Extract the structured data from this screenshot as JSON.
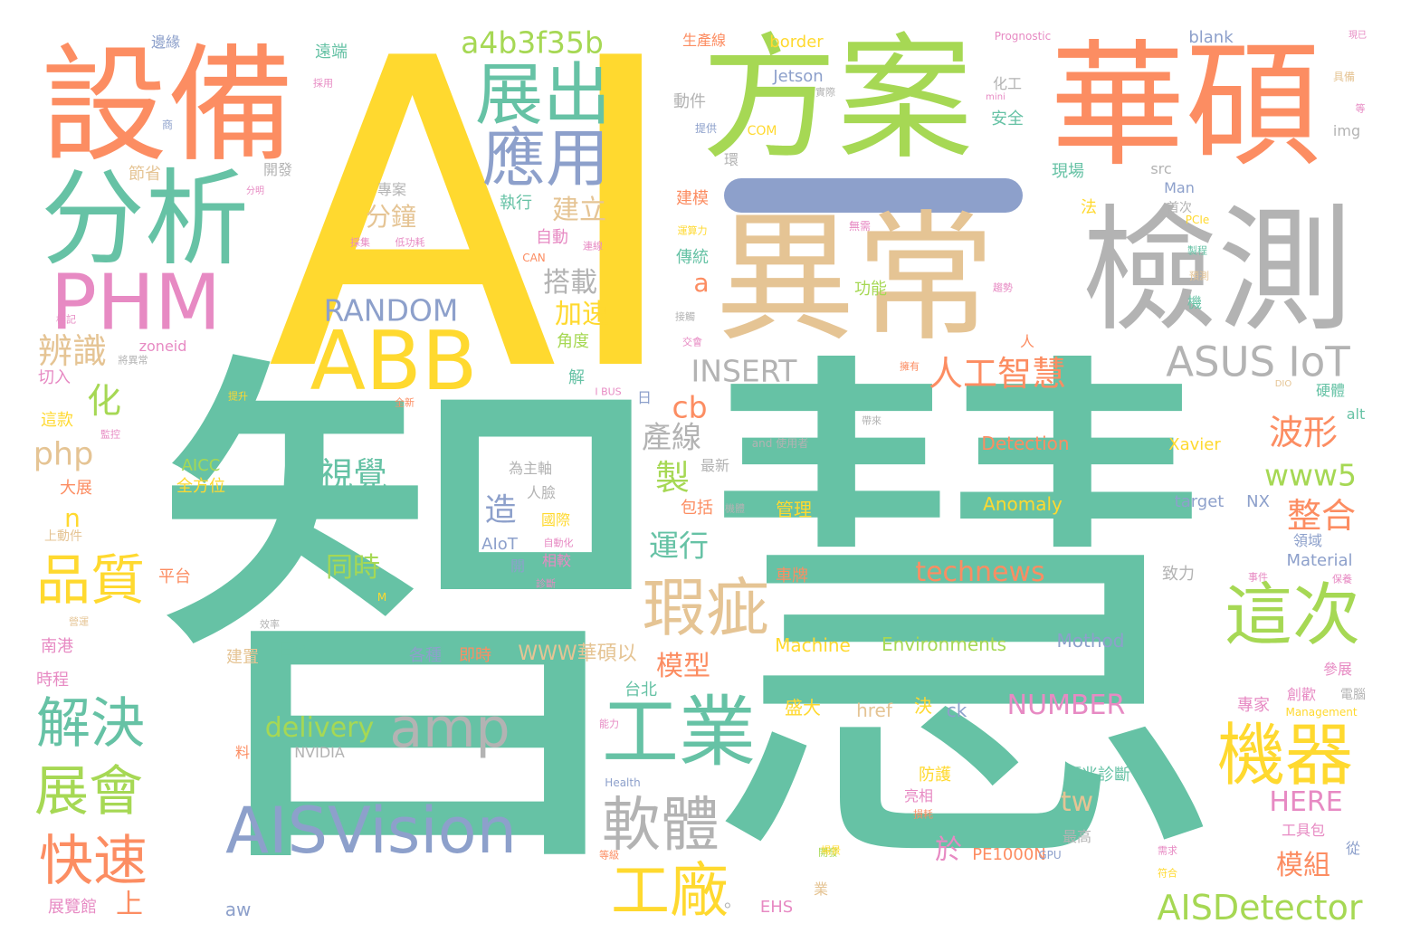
{
  "words": [
    {
      "text": "智慧",
      "color": "#66c2a5"
    },
    {
      "text": "AI",
      "color": "#ffd92f"
    },
    {
      "text": "異常",
      "color": "#e5c494"
    },
    {
      "text": "檢測",
      "color": "#b3b3b3"
    },
    {
      "text": "華碩",
      "color": "#fc8d62"
    },
    {
      "text": "方案",
      "color": "#a6d854"
    },
    {
      "text": "設備",
      "color": "#fc8d62"
    },
    {
      "text": "分析",
      "color": "#66c2a5"
    },
    {
      "text": "ABB",
      "color": "#ffd92f"
    },
    {
      "text": "PHM",
      "color": "#e78ac3"
    },
    {
      "text": "展出",
      "color": "#66c2a5"
    },
    {
      "text": "應用",
      "color": "#8da0cb"
    },
    {
      "text": "AISVision",
      "color": "#8da0cb"
    },
    {
      "text": "工業",
      "color": "#66c2a5"
    },
    {
      "text": "amp",
      "color": "#b3b3b3"
    },
    {
      "text": "機器",
      "color": "#ffd92f"
    },
    {
      "text": "這次",
      "color": "#a6d854"
    },
    {
      "text": "瑕疵",
      "color": "#e5c494"
    },
    {
      "text": "軟體",
      "color": "#b3b3b3"
    },
    {
      "text": "工廠",
      "color": "#ffd92f"
    },
    {
      "text": "解決",
      "color": "#66c2a5"
    },
    {
      "text": "展會",
      "color": "#a6d854"
    },
    {
      "text": "快速",
      "color": "#fc8d62"
    },
    {
      "text": "品質",
      "color": "#ffd92f"
    },
    {
      "text": "ASUS IoT",
      "color": "#b3b3b3"
    },
    {
      "text": "人工智慧",
      "color": "#fc8d62"
    },
    {
      "text": "AISDetector",
      "color": "#a6d854"
    },
    {
      "text": "a4b3f35b",
      "color": "#a6d854"
    },
    {
      "text": "RANDOM",
      "color": "#8da0cb"
    },
    {
      "text": "INSERT",
      "color": "#b3b3b3"
    },
    {
      "text": "technews",
      "color": "#fc8d62"
    },
    {
      "text": "www5",
      "color": "#a6d854"
    },
    {
      "text": "NUMBER",
      "color": "#e78ac3"
    },
    {
      "text": "delivery",
      "color": "#a6d854"
    },
    {
      "text": "波形",
      "color": "#fc8d62"
    },
    {
      "text": "整合",
      "color": "#fc8d62"
    },
    {
      "text": "視覺",
      "color": "#66c2a5"
    },
    {
      "text": "辨識",
      "color": "#e5c494"
    },
    {
      "text": "php",
      "color": "#e5c494"
    },
    {
      "text": "製",
      "color": "#a6d854"
    },
    {
      "text": "產線",
      "color": "#b3b3b3"
    },
    {
      "text": "運行",
      "color": "#66c2a5"
    },
    {
      "text": "造",
      "color": "#8da0cb"
    },
    {
      "text": "cb",
      "color": "#fc8d62"
    },
    {
      "text": "搭載",
      "color": "#b3b3b3"
    },
    {
      "text": "加速",
      "color": "#ffd92f"
    },
    {
      "text": "建立",
      "color": "#e5c494"
    },
    {
      "text": "分鐘",
      "color": "#e5c494"
    },
    {
      "text": "化",
      "color": "#a6d854"
    },
    {
      "text": "同時",
      "color": "#a6d854"
    },
    {
      "text": "模型",
      "color": "#fc8d62"
    },
    {
      "text": "tw",
      "color": "#e5c494"
    },
    {
      "text": "HERE",
      "color": "#e78ac3"
    },
    {
      "text": "模組",
      "color": "#fc8d62"
    },
    {
      "text": "於",
      "color": "#e78ac3"
    },
    {
      "text": "上",
      "color": "#fc8d62"
    },
    {
      "text": "WWW華碩以",
      "color": "#e5c494"
    },
    {
      "text": "Detection",
      "color": "#fc8d62"
    },
    {
      "text": "Anomaly",
      "color": "#ffd92f"
    },
    {
      "text": "Environments",
      "color": "#a6d854"
    },
    {
      "text": "Machine",
      "color": "#ffd92f"
    },
    {
      "text": "Mothod",
      "color": "#8da0cb"
    },
    {
      "text": "Xavier",
      "color": "#ffd92f"
    },
    {
      "text": "target",
      "color": "#8da0cb"
    },
    {
      "text": "NX",
      "color": "#8da0cb"
    },
    {
      "text": "Material",
      "color": "#8da0cb"
    },
    {
      "text": "PE1000N",
      "color": "#fc8d62"
    },
    {
      "text": "EHS",
      "color": "#e78ac3"
    },
    {
      "text": "href",
      "color": "#e5c494"
    },
    {
      "text": "ck",
      "color": "#8da0cb"
    },
    {
      "text": "NVIDIA",
      "color": "#b3b3b3"
    },
    {
      "text": "zoneid",
      "color": "#e78ac3"
    },
    {
      "text": "blank",
      "color": "#8da0cb"
    },
    {
      "text": "border",
      "color": "#ffd92f"
    },
    {
      "text": "Jetson",
      "color": "#8da0cb"
    },
    {
      "text": "COM",
      "color": "#ffd92f"
    },
    {
      "text": "img",
      "color": "#b3b3b3"
    },
    {
      "text": "src",
      "color": "#b3b3b3"
    },
    {
      "text": "Man",
      "color": "#8da0cb"
    },
    {
      "text": "Prognostic",
      "color": "#e78ac3"
    },
    {
      "text": "alt",
      "color": "#66c2a5"
    },
    {
      "text": "aw",
      "color": "#8da0cb"
    },
    {
      "text": "n",
      "color": "#ffd92f"
    },
    {
      "text": "a",
      "color": "#fc8d62"
    },
    {
      "text": "AIoT",
      "color": "#8da0cb"
    },
    {
      "text": "AICC",
      "color": "#a6d854"
    },
    {
      "text": "全方位",
      "color": "#ffd92f"
    },
    {
      "text": "大展",
      "color": "#fc8d62"
    },
    {
      "text": "上動件",
      "color": "#e5c494"
    },
    {
      "text": "平台",
      "color": "#fc8d62"
    },
    {
      "text": "南港",
      "color": "#e78ac3"
    },
    {
      "text": "時程",
      "color": "#e78ac3"
    },
    {
      "text": "遠端",
      "color": "#66c2a5"
    },
    {
      "text": "邊緣",
      "color": "#8da0cb"
    },
    {
      "text": "節省",
      "color": "#e5c494"
    },
    {
      "text": "開發",
      "color": "#b3b3b3"
    },
    {
      "text": "專案",
      "color": "#b3b3b3"
    },
    {
      "text": "執行",
      "color": "#66c2a5"
    },
    {
      "text": "自動",
      "color": "#e78ac3"
    },
    {
      "text": "生產線",
      "color": "#fc8d62"
    },
    {
      "text": "動件",
      "color": "#b3b3b3"
    },
    {
      "text": "建模",
      "color": "#fc8d62"
    },
    {
      "text": "傳統",
      "color": "#66c2a5"
    },
    {
      "text": "功能",
      "color": "#a6d854"
    },
    {
      "text": "角度",
      "color": "#a6d854"
    },
    {
      "text": "切入",
      "color": "#e78ac3"
    },
    {
      "text": "這款",
      "color": "#ffd92f"
    },
    {
      "text": "為主軸",
      "color": "#b3b3b3"
    },
    {
      "text": "人臉",
      "color": "#b3b3b3"
    },
    {
      "text": "國際",
      "color": "#ffd92f"
    },
    {
      "text": "相較",
      "color": "#e78ac3"
    },
    {
      "text": "開",
      "color": "#8da0cb"
    },
    {
      "text": "各種",
      "color": "#8da0cb"
    },
    {
      "text": "即時",
      "color": "#fc8d62"
    },
    {
      "text": "日至",
      "color": "#66c2a5"
    },
    {
      "text": "建置",
      "color": "#e5c494"
    },
    {
      "text": "台北",
      "color": "#66c2a5"
    },
    {
      "text": "管理",
      "color": "#ffd92f"
    },
    {
      "text": "包括",
      "color": "#fc8d62"
    },
    {
      "text": "最新",
      "color": "#b3b3b3"
    },
    {
      "text": "車牌",
      "color": "#fc8d62"
    },
    {
      "text": "盛大",
      "color": "#ffd92f"
    },
    {
      "text": "決",
      "color": "#ffd92f"
    },
    {
      "text": "防護",
      "color": "#ffd92f"
    },
    {
      "text": "亮相",
      "color": "#e78ac3"
    },
    {
      "text": "預兆診斷",
      "color": "#66c2a5"
    },
    {
      "text": "工具包",
      "color": "#e78ac3"
    },
    {
      "text": "最高",
      "color": "#b3b3b3"
    },
    {
      "text": "專家",
      "color": "#e78ac3"
    },
    {
      "text": "創歡",
      "color": "#e78ac3"
    },
    {
      "text": "參展",
      "color": "#e78ac3"
    },
    {
      "text": "電腦",
      "color": "#b3b3b3"
    },
    {
      "text": "硬體",
      "color": "#66c2a5"
    },
    {
      "text": "領域",
      "color": "#8da0cb"
    },
    {
      "text": "致力",
      "color": "#b3b3b3"
    },
    {
      "text": "首次",
      "color": "#b3b3b3"
    },
    {
      "text": "現場",
      "color": "#66c2a5"
    },
    {
      "text": "法",
      "color": "#ffd92f"
    },
    {
      "text": "化工",
      "color": "#b3b3b3"
    },
    {
      "text": "安全",
      "color": "#66c2a5"
    },
    {
      "text": "解",
      "color": "#66c2a5"
    },
    {
      "text": "日",
      "color": "#8da0cb"
    },
    {
      "text": "人",
      "color": "#fc8d62"
    },
    {
      "text": "展覽館",
      "color": "#e78ac3"
    },
    {
      "text": "料",
      "color": "#fc8d62"
    },
    {
      "text": "從",
      "color": "#8da0cb"
    },
    {
      "text": "業",
      "color": "#e5c494"
    },
    {
      "text": "機",
      "color": "#66c2a5"
    },
    {
      "text": "Health",
      "color": "#8da0cb"
    },
    {
      "text": "GPU",
      "color": "#8da0cb"
    },
    {
      "text": "Management",
      "color": "#ffd92f"
    },
    {
      "text": "DIO",
      "color": "#e5c494"
    },
    {
      "text": "and 使用者",
      "color": "#b3b3b3"
    },
    {
      "text": "I BUS",
      "color": "#e78ac3"
    },
    {
      "text": "PCIe",
      "color": "#ffd92f"
    },
    {
      "text": "CAN",
      "color": "#fc8d62"
    },
    {
      "text": "mini",
      "color": "#e78ac3"
    },
    {
      "text": "M",
      "color": "#ffd92f"
    },
    {
      "text": "環",
      "color": "#b3b3b3"
    },
    {
      "text": "提供",
      "color": "#8da0cb"
    },
    {
      "text": "商",
      "color": "#8da0cb"
    },
    {
      "text": "分明",
      "color": "#e78ac3"
    },
    {
      "text": "採集",
      "color": "#e78ac3"
    },
    {
      "text": "低功耗",
      "color": "#e78ac3"
    },
    {
      "text": "無需",
      "color": "#e78ac3"
    },
    {
      "text": "運算力",
      "color": "#ffd92f"
    },
    {
      "text": "連線",
      "color": "#e78ac3"
    },
    {
      "text": "接觸",
      "color": "#b3b3b3"
    },
    {
      "text": "交會",
      "color": "#e78ac3"
    },
    {
      "text": "擁有",
      "color": "#fc8d62"
    },
    {
      "text": "全新",
      "color": "#fc8d62"
    },
    {
      "text": "將異常",
      "color": "#b3b3b3"
    },
    {
      "text": "標記",
      "color": "#e78ac3"
    },
    {
      "text": "監控",
      "color": "#e78ac3"
    },
    {
      "text": "具備",
      "color": "#e5c494"
    },
    {
      "text": "保養",
      "color": "#e78ac3"
    },
    {
      "text": "需求",
      "color": "#e78ac3"
    },
    {
      "text": "預測",
      "color": "#e5c494"
    },
    {
      "text": "事件",
      "color": "#e78ac3"
    },
    {
      "text": "診斷",
      "color": "#e78ac3"
    },
    {
      "text": "自動化",
      "color": "#e78ac3"
    },
    {
      "text": "能力",
      "color": "#e78ac3"
    },
    {
      "text": "機體",
      "color": "#b3b3b3"
    },
    {
      "text": "損耗",
      "color": "#fc8d62"
    },
    {
      "text": "開發",
      "color": "#a6d854"
    },
    {
      "text": "效率",
      "color": "#b3b3b3"
    },
    {
      "text": "等",
      "color": "#e78ac3"
    },
    {
      "text": "製程",
      "color": "#66c2a5"
    },
    {
      "text": "實際",
      "color": "#b3b3b3"
    },
    {
      "text": "場景",
      "color": "#ffd92f"
    },
    {
      "text": "採用",
      "color": "#e78ac3"
    },
    {
      "text": "趨勢",
      "color": "#e78ac3"
    },
    {
      "text": "現已",
      "color": "#e78ac3"
    },
    {
      "text": "提升",
      "color": "#ffd92f"
    },
    {
      "text": "符合",
      "color": "#ffd92f"
    },
    {
      "text": "營運",
      "color": "#e5c494"
    },
    {
      "text": "帶來",
      "color": "#b3b3b3"
    },
    {
      "text": "等級",
      "color": "#fc8d62"
    },
    {
      "text": "。",
      "color": "#b3b3b3"
    }
  ]
}
